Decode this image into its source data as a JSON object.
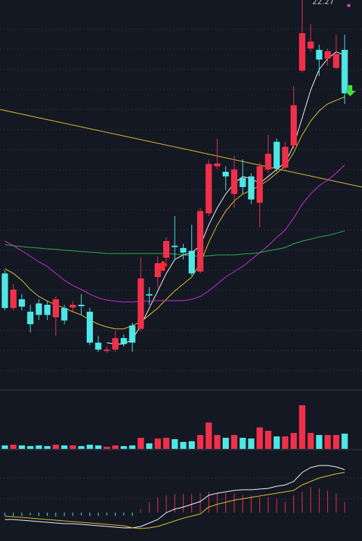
{
  "chart_data": [
    {
      "type": "candlestick",
      "ylim": [
        14.02,
        22.27
      ],
      "up_color": "#f0304a",
      "down_color": "#4ee6e6",
      "annotations": [
        {
          "text": "22.27"
        }
      ],
      "open": [
        16.35,
        15.6,
        15.79,
        15.52,
        15.7,
        15.67,
        15.4,
        15.6,
        15.61,
        15.67,
        15.52,
        14.85,
        14.67,
        14.7,
        14.95,
        15.22,
        15.15,
        15.9,
        16.27,
        16.69,
        16.95,
        16.9,
        16.84,
        16.39,
        17.65,
        18.67,
        18.55,
        18.07,
        18.42,
        18.45,
        17.88,
        18.6,
        19.2,
        18.64,
        19.12,
        20.74,
        21.22,
        21.19,
        21.0,
        20.8,
        21.19
      ],
      "high": [
        16.42,
        16.12,
        15.9,
        15.67,
        15.79,
        15.75,
        15.85,
        15.67,
        15.75,
        15.9,
        15.6,
        15.0,
        14.77,
        15.1,
        15.03,
        15.28,
        16.69,
        16.05,
        16.72,
        17.13,
        17.59,
        16.99,
        17.4,
        17.77,
        18.82,
        19.27,
        18.67,
        18.9,
        18.82,
        18.52,
        18.75,
        19.35,
        19.27,
        19.2,
        20.4,
        22.27,
        21.75,
        21.3,
        21.22,
        21.52,
        21.52
      ],
      "low": [
        15.55,
        15.55,
        15.55,
        15.07,
        15.34,
        15.34,
        15.0,
        15.25,
        15.52,
        15.45,
        14.8,
        14.65,
        14.62,
        14.65,
        14.77,
        14.65,
        15.1,
        15.67,
        16.05,
        16.5,
        16.65,
        16.65,
        16.3,
        16.35,
        17.59,
        18.6,
        18.15,
        17.77,
        18.07,
        17.85,
        17.35,
        18.52,
        18.55,
        18.6,
        19.05,
        20.7,
        21.15,
        20.62,
        20.85,
        20.77,
        20.02
      ],
      "close": [
        15.6,
        16.0,
        15.63,
        15.25,
        15.45,
        15.45,
        15.79,
        15.33,
        15.67,
        15.64,
        14.85,
        14.7,
        14.7,
        14.95,
        14.82,
        14.85,
        16.24,
        15.87,
        16.57,
        17.05,
        16.92,
        16.8,
        16.35,
        17.7,
        18.72,
        18.73,
        18.45,
        18.6,
        18.22,
        17.95,
        18.67,
        18.94,
        18.63,
        19.09,
        19.99,
        21.55,
        21.37,
        20.98,
        21.16,
        21.1,
        20.25
      ],
      "series": [
        {
          "color": "#ffffff",
          "values": [
            null,
            null,
            null,
            null,
            null,
            null,
            null,
            null,
            null,
            null,
            null,
            null,
            14.85,
            14.82,
            14.82,
            14.92,
            15.22,
            15.6,
            15.97,
            16.35,
            16.65,
            16.75,
            16.8,
            16.95,
            17.4,
            17.77,
            18.07,
            18.3,
            18.45,
            18.4,
            18.3,
            18.45,
            18.6,
            18.75,
            19.12,
            19.72,
            20.32,
            20.77,
            21.0,
            21.15,
            21.07
          ]
        },
        {
          "color": "#e8c632",
          "values": [
            16.45,
            16.35,
            16.2,
            16.0,
            15.85,
            15.75,
            15.67,
            15.6,
            15.52,
            15.45,
            15.34,
            15.25,
            15.19,
            15.15,
            15.15,
            15.22,
            15.3,
            15.45,
            15.6,
            15.79,
            15.97,
            16.12,
            16.27,
            16.57,
            17.02,
            17.4,
            17.7,
            17.92,
            18.07,
            18.15,
            18.25,
            18.37,
            18.52,
            18.67,
            18.97,
            19.35,
            19.65,
            19.87,
            20.02,
            20.1,
            20.17
          ]
        },
        {
          "color": "#d030d8",
          "values": [
            17.05,
            16.95,
            16.84,
            16.72,
            16.6,
            16.5,
            16.35,
            16.2,
            16.09,
            16.0,
            15.9,
            15.82,
            15.77,
            15.75,
            15.73,
            15.73,
            15.75,
            15.75,
            15.76,
            15.76,
            15.76,
            15.76,
            15.79,
            15.85,
            15.97,
            16.12,
            16.27,
            16.39,
            16.5,
            16.65,
            16.8,
            16.95,
            17.13,
            17.29,
            17.55,
            17.85,
            18.07,
            18.25,
            18.37,
            18.52,
            18.7
          ]
        },
        {
          "color": "#2fb84a",
          "values": [
            16.97,
            16.95,
            16.93,
            16.91,
            16.9,
            16.88,
            16.87,
            16.85,
            16.84,
            16.82,
            16.81,
            16.8,
            16.78,
            16.78,
            16.78,
            16.78,
            16.78,
            16.78,
            16.78,
            16.78,
            16.77,
            16.75,
            16.73,
            16.72,
            16.73,
            16.75,
            16.75,
            16.75,
            16.77,
            16.78,
            16.8,
            16.84,
            16.87,
            16.91,
            16.99,
            17.05,
            17.09,
            17.14,
            17.17,
            17.22,
            17.27
          ]
        }
      ]
    },
    {
      "type": "volume",
      "ylim": [
        0,
        83
      ],
      "values": [
        5,
        6,
        5,
        4,
        5,
        4,
        6,
        5,
        5,
        4,
        6,
        5,
        3,
        5,
        4,
        5,
        16,
        8,
        15,
        16,
        14,
        10,
        11,
        20,
        38,
        20,
        16,
        20,
        16,
        15,
        31,
        26,
        18,
        18,
        23,
        63,
        23,
        20,
        20,
        20,
        22
      ]
    },
    {
      "type": "macd",
      "ylim": [
        -0.35,
        0.85
      ],
      "up_color": "#f0304a",
      "down_color": "#4ee6e6",
      "values": [
        -0.05,
        -0.05,
        -0.05,
        -0.04,
        -0.05,
        -0.05,
        -0.06,
        -0.05,
        -0.05,
        -0.04,
        -0.05,
        -0.05,
        -0.04,
        -0.05,
        -0.04,
        -0.05,
        0.05,
        0.15,
        0.22,
        0.25,
        0.27,
        0.27,
        0.27,
        0.28,
        0.3,
        0.28,
        0.28,
        0.28,
        0.25,
        0.25,
        0.22,
        0.22,
        0.2,
        0.15,
        0.25,
        0.3,
        0.37,
        0.35,
        0.32,
        0.28,
        0.15
      ],
      "series": [
        {
          "color": "#ffffff",
          "values": [
            -0.1,
            -0.1,
            -0.11,
            -0.12,
            -0.13,
            -0.14,
            -0.15,
            -0.16,
            -0.16,
            -0.17,
            -0.18,
            -0.19,
            -0.2,
            -0.21,
            -0.22,
            -0.22,
            -0.2,
            -0.15,
            -0.1,
            0.0,
            0.05,
            0.08,
            0.12,
            0.16,
            0.25,
            0.28,
            0.3,
            0.32,
            0.33,
            0.33,
            0.34,
            0.35,
            0.38,
            0.4,
            0.45,
            0.58,
            0.65,
            0.68,
            0.68,
            0.66,
            0.62
          ]
        },
        {
          "color": "#e8c632",
          "values": [
            -0.05,
            -0.06,
            -0.07,
            -0.08,
            -0.09,
            -0.1,
            -0.11,
            -0.12,
            -0.13,
            -0.14,
            -0.15,
            -0.16,
            -0.17,
            -0.18,
            -0.19,
            -0.22,
            -0.23,
            -0.22,
            -0.2,
            -0.16,
            -0.12,
            -0.08,
            -0.05,
            -0.02,
            0.08,
            0.12,
            0.15,
            0.18,
            0.2,
            0.22,
            0.24,
            0.26,
            0.28,
            0.3,
            0.32,
            0.4,
            0.45,
            0.5,
            0.53,
            0.56,
            0.58
          ]
        }
      ]
    }
  ]
}
